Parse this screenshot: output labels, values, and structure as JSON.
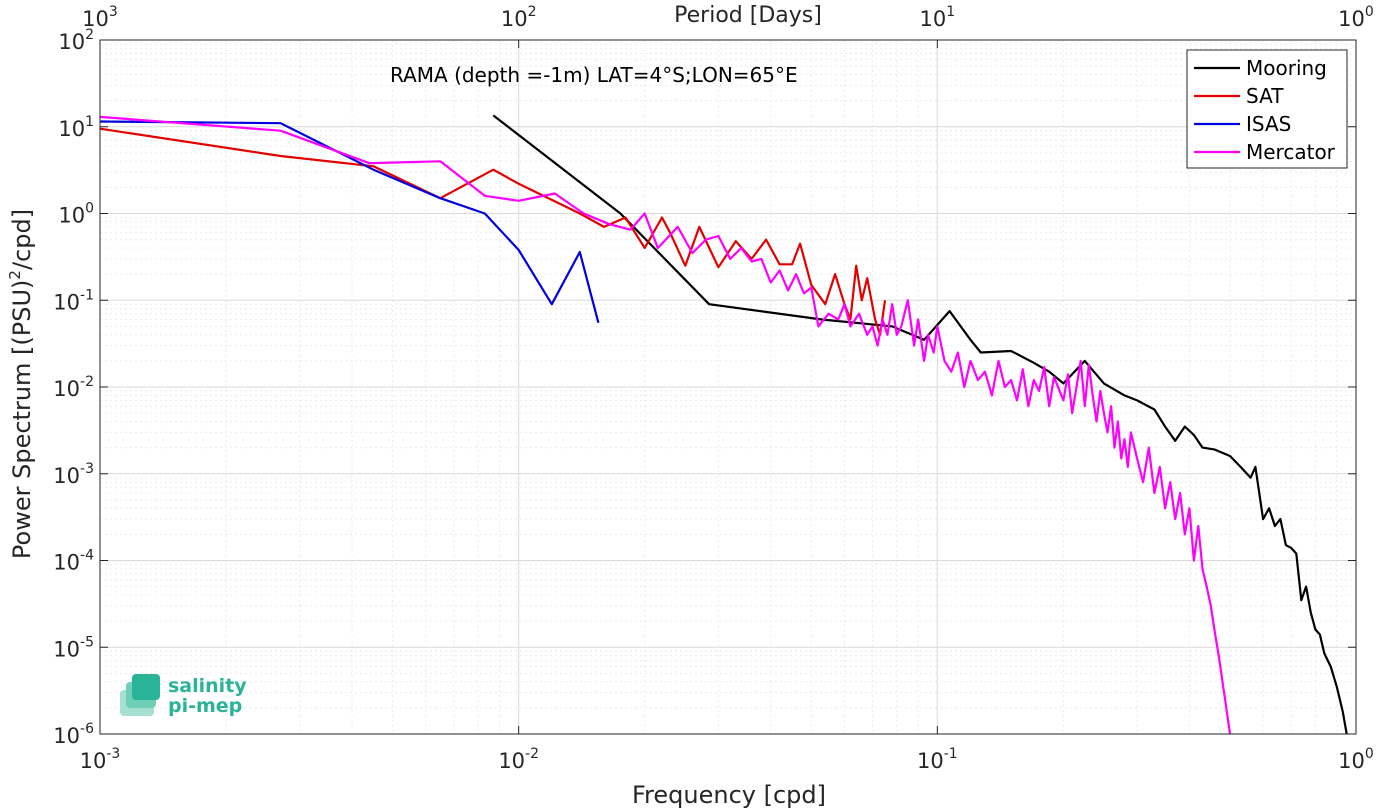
{
  "chart_data": {
    "type": "line",
    "title": "",
    "annotation": "RAMA (depth =-1m) LAT=4°S;LON=65°E",
    "xlabel": "Frequency [cpd]",
    "ylabel": "Power Spectrum [(PSU)²/cpd]",
    "ylabel_parts": {
      "pre": "Power Spectrum [(PSU)",
      "sup": "2",
      "post": "/cpd]"
    },
    "top_axis_label": "Period [Days]",
    "xscale": "log",
    "yscale": "log",
    "xlim": [
      0.001,
      1
    ],
    "ylim": [
      1e-06,
      100
    ],
    "grid": true,
    "legend_position": "top-right",
    "x_ticks": [
      {
        "value": 0.001,
        "base": "10",
        "exp": "-3"
      },
      {
        "value": 0.01,
        "base": "10",
        "exp": "-2"
      },
      {
        "value": 0.1,
        "base": "10",
        "exp": "-1"
      },
      {
        "value": 1,
        "base": "10",
        "exp": "0"
      }
    ],
    "top_ticks": [
      {
        "value": 0.001,
        "base": "10",
        "exp": "3"
      },
      {
        "value": 0.01,
        "base": "10",
        "exp": "2"
      },
      {
        "value": 0.1,
        "base": "10",
        "exp": "1"
      },
      {
        "value": 1,
        "base": "10",
        "exp": "0"
      }
    ],
    "y_ticks": [
      {
        "value": 100,
        "base": "10",
        "exp": "2"
      },
      {
        "value": 10,
        "base": "10",
        "exp": "1"
      },
      {
        "value": 1,
        "base": "10",
        "exp": "0"
      },
      {
        "value": 0.1,
        "base": "10",
        "exp": "-1"
      },
      {
        "value": 0.01,
        "base": "10",
        "exp": "-2"
      },
      {
        "value": 0.001,
        "base": "10",
        "exp": "-3"
      },
      {
        "value": 0.0001,
        "base": "10",
        "exp": "-4"
      },
      {
        "value": 1e-05,
        "base": "10",
        "exp": "-5"
      },
      {
        "value": 1e-06,
        "base": "10",
        "exp": "-6"
      }
    ],
    "series": [
      {
        "name": "Mooring",
        "color": "#000000",
        "points": [
          [
            0.0087,
            13.5
          ],
          [
            0.0175,
            1.0
          ],
          [
            0.0285,
            0.09
          ],
          [
            0.053,
            0.06
          ],
          [
            0.078,
            0.05
          ],
          [
            0.093,
            0.035
          ],
          [
            0.107,
            0.075
          ],
          [
            0.12,
            0.035
          ],
          [
            0.127,
            0.025
          ],
          [
            0.15,
            0.026
          ],
          [
            0.17,
            0.019
          ],
          [
            0.185,
            0.015
          ],
          [
            0.2,
            0.011
          ],
          [
            0.225,
            0.02
          ],
          [
            0.25,
            0.011
          ],
          [
            0.28,
            0.008
          ],
          [
            0.3,
            0.007
          ],
          [
            0.33,
            0.0055
          ],
          [
            0.35,
            0.0035
          ],
          [
            0.37,
            0.0024
          ],
          [
            0.39,
            0.0035
          ],
          [
            0.41,
            0.0028
          ],
          [
            0.43,
            0.002
          ],
          [
            0.46,
            0.0019
          ],
          [
            0.5,
            0.0016
          ],
          [
            0.53,
            0.0012
          ],
          [
            0.56,
            0.0009
          ],
          [
            0.575,
            0.0012
          ],
          [
            0.6,
            0.0003
          ],
          [
            0.62,
            0.0004
          ],
          [
            0.64,
            0.00025
          ],
          [
            0.66,
            0.0003
          ],
          [
            0.68,
            0.00015
          ],
          [
            0.7,
            0.00014
          ],
          [
            0.72,
            0.00012
          ],
          [
            0.74,
            3.5e-05
          ],
          [
            0.76,
            5e-05
          ],
          [
            0.78,
            2.5e-05
          ],
          [
            0.8,
            1.6e-05
          ],
          [
            0.82,
            1.4e-05
          ],
          [
            0.84,
            8.5e-06
          ],
          [
            0.87,
            6e-06
          ],
          [
            0.9,
            3.5e-06
          ],
          [
            0.93,
            1.8e-06
          ],
          [
            0.95,
            1e-06
          ]
        ]
      },
      {
        "name": "SAT",
        "color": "#e30000",
        "points": [
          [
            0.001,
            9.5
          ],
          [
            0.0027,
            4.6
          ],
          [
            0.0045,
            3.5
          ],
          [
            0.0065,
            1.5
          ],
          [
            0.0087,
            3.2
          ],
          [
            0.01,
            2.2
          ],
          [
            0.014,
            1.0
          ],
          [
            0.016,
            0.7
          ],
          [
            0.018,
            0.9
          ],
          [
            0.02,
            0.4
          ],
          [
            0.022,
            0.9
          ],
          [
            0.023,
            0.6
          ],
          [
            0.025,
            0.25
          ],
          [
            0.027,
            0.7
          ],
          [
            0.03,
            0.24
          ],
          [
            0.033,
            0.48
          ],
          [
            0.036,
            0.3
          ],
          [
            0.039,
            0.5
          ],
          [
            0.042,
            0.26
          ],
          [
            0.045,
            0.26
          ],
          [
            0.047,
            0.45
          ],
          [
            0.05,
            0.15
          ],
          [
            0.054,
            0.09
          ],
          [
            0.057,
            0.2
          ],
          [
            0.06,
            0.09
          ],
          [
            0.062,
            0.06
          ],
          [
            0.064,
            0.25
          ],
          [
            0.066,
            0.1
          ],
          [
            0.068,
            0.18
          ],
          [
            0.071,
            0.06
          ],
          [
            0.073,
            0.04
          ],
          [
            0.075,
            0.1
          ]
        ]
      },
      {
        "name": "ISAS",
        "color": "#0000e0",
        "points": [
          [
            0.001,
            11.5
          ],
          [
            0.0027,
            11.0
          ],
          [
            0.0045,
            3.2
          ],
          [
            0.0065,
            1.5
          ],
          [
            0.0083,
            1.0
          ],
          [
            0.01,
            0.38
          ],
          [
            0.012,
            0.09
          ],
          [
            0.014,
            0.36
          ],
          [
            0.0155,
            0.055
          ]
        ]
      },
      {
        "name": "Mercator",
        "color": "#ff00ff",
        "points": [
          [
            0.001,
            13.0
          ],
          [
            0.0027,
            9.0
          ],
          [
            0.0044,
            3.8
          ],
          [
            0.0065,
            4.0
          ],
          [
            0.0083,
            1.6
          ],
          [
            0.01,
            1.4
          ],
          [
            0.0122,
            1.7
          ],
          [
            0.0143,
            1.0
          ],
          [
            0.0165,
            0.75
          ],
          [
            0.0185,
            0.65
          ],
          [
            0.02,
            1.0
          ],
          [
            0.0215,
            0.4
          ],
          [
            0.024,
            0.7
          ],
          [
            0.026,
            0.35
          ],
          [
            0.028,
            0.5
          ],
          [
            0.03,
            0.55
          ],
          [
            0.032,
            0.3
          ],
          [
            0.034,
            0.4
          ],
          [
            0.036,
            0.28
          ],
          [
            0.038,
            0.3
          ],
          [
            0.04,
            0.16
          ],
          [
            0.042,
            0.22
          ],
          [
            0.044,
            0.13
          ],
          [
            0.046,
            0.2
          ],
          [
            0.048,
            0.12
          ],
          [
            0.05,
            0.14
          ],
          [
            0.052,
            0.05
          ],
          [
            0.055,
            0.07
          ],
          [
            0.058,
            0.06
          ],
          [
            0.06,
            0.09
          ],
          [
            0.062,
            0.05
          ],
          [
            0.065,
            0.07
          ],
          [
            0.068,
            0.04
          ],
          [
            0.07,
            0.05
          ],
          [
            0.072,
            0.03
          ],
          [
            0.074,
            0.06
          ],
          [
            0.076,
            0.04
          ],
          [
            0.078,
            0.09
          ],
          [
            0.08,
            0.04
          ],
          [
            0.082,
            0.05
          ],
          [
            0.085,
            0.1
          ],
          [
            0.088,
            0.03
          ],
          [
            0.09,
            0.06
          ],
          [
            0.093,
            0.02
          ],
          [
            0.095,
            0.04
          ],
          [
            0.098,
            0.025
          ],
          [
            0.1,
            0.05
          ],
          [
            0.104,
            0.02
          ],
          [
            0.108,
            0.015
          ],
          [
            0.112,
            0.025
          ],
          [
            0.116,
            0.01
          ],
          [
            0.12,
            0.02
          ],
          [
            0.125,
            0.012
          ],
          [
            0.13,
            0.015
          ],
          [
            0.135,
            0.008
          ],
          [
            0.14,
            0.02
          ],
          [
            0.145,
            0.01
          ],
          [
            0.15,
            0.012
          ],
          [
            0.155,
            0.007
          ],
          [
            0.16,
            0.016
          ],
          [
            0.165,
            0.006
          ],
          [
            0.17,
            0.012
          ],
          [
            0.175,
            0.009
          ],
          [
            0.18,
            0.017
          ],
          [
            0.185,
            0.006
          ],
          [
            0.19,
            0.013
          ],
          [
            0.2,
            0.007
          ],
          [
            0.205,
            0.014
          ],
          [
            0.21,
            0.005
          ],
          [
            0.215,
            0.01
          ],
          [
            0.22,
            0.02
          ],
          [
            0.225,
            0.006
          ],
          [
            0.23,
            0.018
          ],
          [
            0.235,
            0.008
          ],
          [
            0.24,
            0.004
          ],
          [
            0.245,
            0.009
          ],
          [
            0.25,
            0.005
          ],
          [
            0.255,
            0.003
          ],
          [
            0.26,
            0.006
          ],
          [
            0.265,
            0.002
          ],
          [
            0.27,
            0.004
          ],
          [
            0.275,
            0.0015
          ],
          [
            0.28,
            0.0025
          ],
          [
            0.285,
            0.0012
          ],
          [
            0.29,
            0.003
          ],
          [
            0.3,
            0.0015
          ],
          [
            0.31,
            0.0008
          ],
          [
            0.32,
            0.002
          ],
          [
            0.33,
            0.0006
          ],
          [
            0.34,
            0.0012
          ],
          [
            0.35,
            0.0004
          ],
          [
            0.36,
            0.0008
          ],
          [
            0.37,
            0.0003
          ],
          [
            0.38,
            0.0006
          ],
          [
            0.39,
            0.0002
          ],
          [
            0.4,
            0.0004
          ],
          [
            0.41,
            0.0001
          ],
          [
            0.42,
            0.00025
          ],
          [
            0.43,
            8e-05
          ],
          [
            0.44,
            5e-05
          ],
          [
            0.45,
            3e-05
          ],
          [
            0.46,
            1.5e-05
          ],
          [
            0.47,
            8e-06
          ],
          [
            0.48,
            4e-06
          ],
          [
            0.49,
            2e-06
          ],
          [
            0.5,
            1e-06
          ]
        ]
      }
    ]
  },
  "logo": {
    "line1": "salinity",
    "line2": "pi-mep"
  }
}
